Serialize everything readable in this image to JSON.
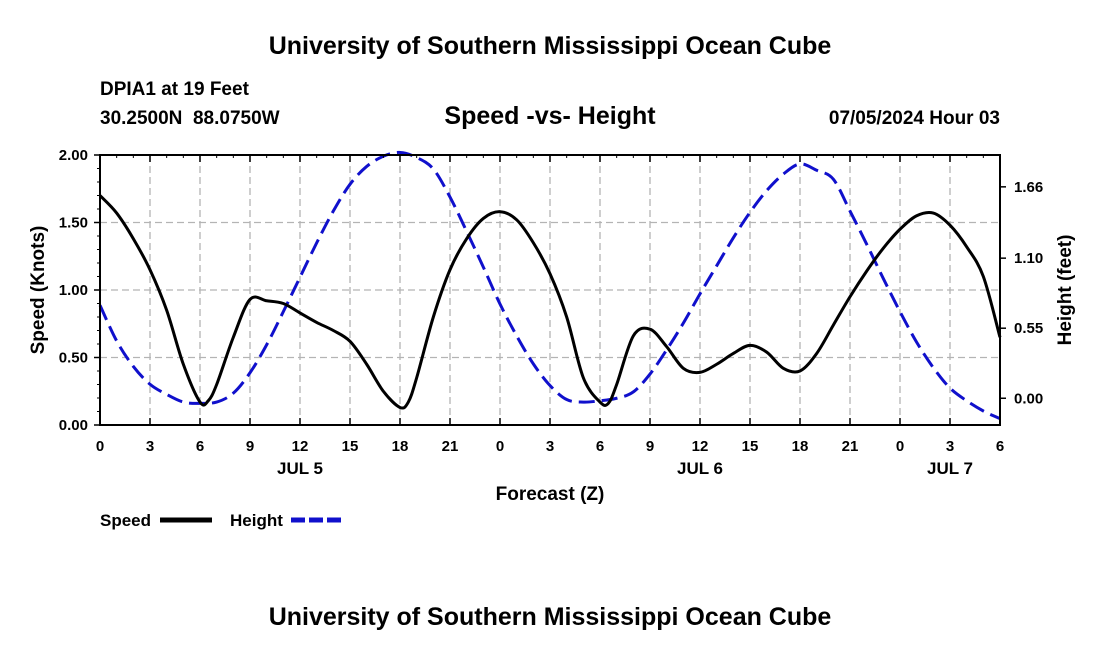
{
  "page": {
    "title": "University of Southern Mississippi Ocean Cube",
    "footer_title": "University of Southern Mississippi Ocean Cube"
  },
  "station": {
    "name": "DPIA1 at 19 Feet",
    "location": "30.2500N  88.0750W",
    "timestamp": "07/05/2024 Hour 03"
  },
  "colors": {
    "speed": "#000000",
    "height": "#1010cc",
    "grid": "#b4b4b4"
  },
  "chart_data": {
    "type": "line",
    "title": "Speed -vs- Height",
    "xlabel": "Forecast (Z)",
    "ylabel": "Speed (Knots)",
    "y2label": "Height (feet)",
    "xlim": [
      0,
      54
    ],
    "ylim": [
      0,
      2.0
    ],
    "y2lim": [
      -0.21,
      1.91
    ],
    "x_ticks": [
      0,
      3,
      6,
      9,
      12,
      15,
      18,
      21,
      24,
      27,
      30,
      33,
      36,
      39,
      42,
      45,
      48,
      51,
      54
    ],
    "x_tick_labels": [
      "0",
      "3",
      "6",
      "9",
      "12",
      "15",
      "18",
      "21",
      "0",
      "3",
      "6",
      "9",
      "12",
      "15",
      "18",
      "21",
      "0",
      "3",
      "6"
    ],
    "y_ticks": [
      0,
      0.5,
      1.0,
      1.5,
      2.0
    ],
    "y_tick_labels": [
      "0.00",
      "0.50",
      "1.00",
      "1.50",
      "2.00"
    ],
    "y2_ticks": [
      0,
      0.55,
      1.1,
      1.66
    ],
    "y2_tick_labels": [
      "0.00",
      "0.55",
      "1.10",
      "1.66"
    ],
    "date_labels": [
      {
        "text": "JUL 5",
        "x": 12
      },
      {
        "text": "JUL 6",
        "x": 36
      },
      {
        "text": "JUL 7",
        "x": 51
      }
    ],
    "grid": true,
    "legend": [
      {
        "label": "Speed",
        "style": "solid"
      },
      {
        "label": "Height",
        "style": "dashed"
      }
    ],
    "series": [
      {
        "name": "Speed",
        "axis": "left",
        "style": "solid",
        "x": [
          0,
          1,
          2,
          3,
          4,
          5,
          6,
          6.5,
          7,
          8,
          9,
          10,
          11,
          12,
          13,
          14,
          15,
          16,
          17,
          18,
          18.5,
          19,
          20,
          21,
          22,
          23,
          24,
          25,
          26,
          27,
          28,
          29,
          30,
          30.5,
          31,
          32,
          33,
          34,
          35,
          36,
          37,
          38,
          39,
          40,
          41,
          42,
          43,
          44,
          45,
          46,
          47,
          48,
          49,
          50,
          51,
          52,
          53,
          54
        ],
        "values": [
          1.7,
          1.57,
          1.38,
          1.15,
          0.85,
          0.45,
          0.17,
          0.18,
          0.3,
          0.65,
          0.93,
          0.92,
          0.9,
          0.83,
          0.76,
          0.7,
          0.62,
          0.45,
          0.25,
          0.13,
          0.17,
          0.35,
          0.8,
          1.15,
          1.38,
          1.53,
          1.58,
          1.52,
          1.35,
          1.12,
          0.8,
          0.35,
          0.17,
          0.16,
          0.3,
          0.66,
          0.71,
          0.58,
          0.42,
          0.39,
          0.45,
          0.53,
          0.59,
          0.54,
          0.42,
          0.4,
          0.53,
          0.74,
          0.95,
          1.14,
          1.31,
          1.45,
          1.55,
          1.57,
          1.48,
          1.32,
          1.1,
          0.65
        ]
      },
      {
        "name": "Height",
        "axis": "right",
        "style": "dashed",
        "x": [
          0,
          1,
          2,
          3,
          4,
          5,
          6,
          7,
          8,
          9,
          10,
          11,
          12,
          13,
          14,
          15,
          16,
          17,
          18,
          19,
          20,
          21,
          22,
          23,
          24,
          25,
          26,
          27,
          28,
          29,
          30,
          31,
          32,
          33,
          34,
          35,
          36,
          37,
          38,
          39,
          40,
          41,
          42,
          43,
          44,
          45,
          46,
          47,
          48,
          49,
          50,
          51,
          52,
          53,
          54
        ],
        "values": [
          0.73,
          0.45,
          0.25,
          0.11,
          0.03,
          -0.03,
          -0.04,
          -0.03,
          0.04,
          0.2,
          0.42,
          0.68,
          0.95,
          1.22,
          1.47,
          1.68,
          1.82,
          1.9,
          1.93,
          1.89,
          1.8,
          1.58,
          1.31,
          1.03,
          0.74,
          0.49,
          0.27,
          0.1,
          -0.01,
          -0.03,
          -0.02,
          0.0,
          0.05,
          0.19,
          0.38,
          0.59,
          0.82,
          1.04,
          1.26,
          1.46,
          1.63,
          1.76,
          1.84,
          1.79,
          1.72,
          1.47,
          1.21,
          0.94,
          0.68,
          0.44,
          0.24,
          0.08,
          -0.02,
          -0.1,
          -0.16
        ]
      }
    ]
  }
}
